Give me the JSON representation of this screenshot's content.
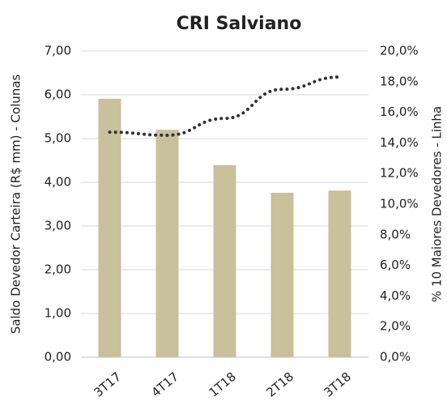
{
  "chart_data": {
    "type": "bar",
    "title": "CRI Salviano",
    "ylabel": "Saldo Devedor Carteira (R$ mm) - Colunas",
    "y2label": "% 10 Maiores Devedores - Linha",
    "categories": [
      "3T17",
      "4T17",
      "1T18",
      "2T18",
      "3T18"
    ],
    "series": [
      {
        "type": "bar",
        "color": "#c9c09c",
        "values": [
          5.91,
          5.2,
          4.39,
          3.76,
          3.81
        ]
      },
      {
        "type": "line",
        "color": "#333333",
        "axis": "y2",
        "values": [
          14.7,
          14.5,
          15.6,
          17.5,
          18.3
        ]
      }
    ],
    "ylim": [
      0,
      7
    ],
    "yticks": [
      {
        "value": 0,
        "label": "0,00"
      },
      {
        "value": 1,
        "label": "1,00"
      },
      {
        "value": 2,
        "label": "2,00"
      },
      {
        "value": 3,
        "label": "3,00"
      },
      {
        "value": 4,
        "label": "4,00"
      },
      {
        "value": 5,
        "label": "5,00"
      },
      {
        "value": 6,
        "label": "6,00"
      },
      {
        "value": 7,
        "label": "7,00"
      }
    ],
    "y2lim": [
      0,
      20
    ],
    "y2ticks": [
      {
        "value": 0,
        "label": "0,0%"
      },
      {
        "value": 2,
        "label": "2,0%"
      },
      {
        "value": 4,
        "label": "4,0%"
      },
      {
        "value": 6,
        "label": "6,0%"
      },
      {
        "value": 8,
        "label": "8,0%"
      },
      {
        "value": 10,
        "label": "10,0%"
      },
      {
        "value": 12,
        "label": "12,0%"
      },
      {
        "value": 14,
        "label": "14,0%"
      },
      {
        "value": 16,
        "label": "16,0%"
      },
      {
        "value": 18,
        "label": "18,0%"
      },
      {
        "value": 20,
        "label": "20,0%"
      }
    ],
    "grid": true
  }
}
